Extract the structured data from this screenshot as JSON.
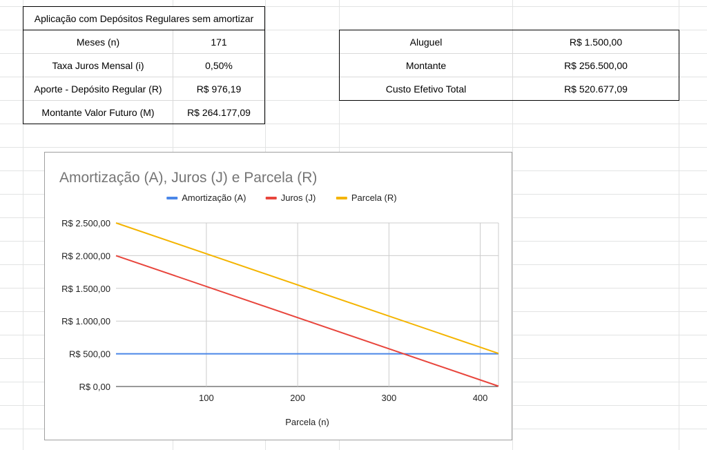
{
  "left_table": {
    "title": "Aplicação com Depósitos Regulares sem amortizar",
    "rows": [
      {
        "label": "Meses (n)",
        "value": "171"
      },
      {
        "label": "Taxa Juros Mensal (i)",
        "value": "0,50%"
      },
      {
        "label": "Aporte - Depósito Regular (R)",
        "value": "R$ 976,19"
      },
      {
        "label": "Montante Valor Futuro (M)",
        "value": "R$ 264.177,09"
      }
    ]
  },
  "right_table": {
    "rows": [
      {
        "label": "Aluguel",
        "value": "R$ 1.500,00"
      },
      {
        "label": "Montante",
        "value": "R$ 256.500,00"
      },
      {
        "label": "Custo Efetivo Total",
        "value": "R$ 520.677,09"
      }
    ]
  },
  "colors": {
    "amortizacao": "#4a86e8",
    "juros": "#e8453c",
    "parcela": "#f4b400",
    "title_text": "#757575",
    "axis_text": "#222222",
    "grid": "#cccccc"
  },
  "chart_data": {
    "type": "line",
    "title": "Amortização (A), Juros (J) e Parcela (R)",
    "xlabel": "Parcela (n)",
    "ylabel": "",
    "legend_position": "top",
    "grid": true,
    "xlim": [
      1,
      420
    ],
    "ylim": [
      0,
      2500
    ],
    "x_ticks": [
      100,
      200,
      300,
      400
    ],
    "y_ticks": [
      0,
      500,
      1000,
      1500,
      2000,
      2500
    ],
    "y_tick_labels": [
      "R$ 0,00",
      "R$ 500,00",
      "R$ 1.000,00",
      "R$ 1.500,00",
      "R$ 2.000,00",
      "R$ 2.500,00"
    ],
    "series": [
      {
        "name": "Amortização (A)",
        "color_key": "amortizacao",
        "x": [
          1,
          420
        ],
        "y": [
          500,
          500
        ]
      },
      {
        "name": "Juros (J)",
        "color_key": "juros",
        "x": [
          1,
          420
        ],
        "y": [
          2000,
          5
        ]
      },
      {
        "name": "Parcela (R)",
        "color_key": "parcela",
        "x": [
          1,
          420
        ],
        "y": [
          2500,
          505
        ]
      }
    ]
  }
}
